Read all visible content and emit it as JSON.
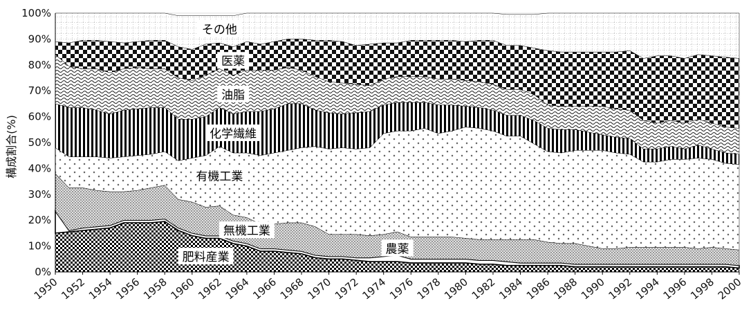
{
  "chart_data": {
    "type": "area",
    "ylabel": "構成割合(%)",
    "xlabel": "",
    "title": "",
    "xlim": [
      1950,
      2000
    ],
    "ylim": [
      0,
      100
    ],
    "y_ticks": [
      "0%",
      "10%",
      "20%",
      "30%",
      "40%",
      "50%",
      "60%",
      "70%",
      "80%",
      "90%",
      "100%"
    ],
    "x_ticks": [
      "1950",
      "1952",
      "1954",
      "1956",
      "1958",
      "1960",
      "1962",
      "1964",
      "1966",
      "1968",
      "1970",
      "1972",
      "1974",
      "1976",
      "1978",
      "1980",
      "1982",
      "1984",
      "1986",
      "1988",
      "1990",
      "1992",
      "1994",
      "1996",
      "1998",
      "2000"
    ],
    "stacked": true,
    "x": [
      1950,
      1951,
      1952,
      1953,
      1954,
      1955,
      1956,
      1957,
      1958,
      1959,
      1960,
      1961,
      1962,
      1963,
      1964,
      1965,
      1966,
      1967,
      1968,
      1969,
      1970,
      1971,
      1972,
      1973,
      1974,
      1975,
      1976,
      1977,
      1978,
      1979,
      1980,
      1981,
      1982,
      1983,
      1984,
      1985,
      1986,
      1987,
      1988,
      1989,
      1990,
      1991,
      1992,
      1993,
      1994,
      1995,
      1996,
      1997,
      1998,
      1999,
      2000
    ],
    "series": [
      {
        "name": "肥料産業",
        "values": [
          15,
          15.5,
          16,
          16.5,
          17,
          19,
          19,
          19,
          19.5,
          16,
          14,
          13,
          13,
          11,
          10,
          8,
          8,
          7.5,
          7,
          5.5,
          5,
          5,
          4.5,
          4,
          4,
          4,
          3.5,
          3.5,
          3.5,
          3.5,
          3.5,
          3,
          3,
          2.5,
          2.5,
          2.5,
          2.5,
          2.5,
          2,
          2,
          2,
          2,
          2,
          2,
          2,
          2,
          2,
          2,
          2,
          2,
          1.5
        ]
      },
      {
        "name": "農薬",
        "values": [
          8.5,
          0.5,
          1,
          1,
          1,
          1,
          1,
          1,
          1,
          1,
          1,
          1,
          1,
          1,
          1,
          1,
          1,
          1,
          1,
          1,
          1,
          1,
          1,
          1.5,
          2,
          2.5,
          1.5,
          1.5,
          1.5,
          1.5,
          1.5,
          1.5,
          1.5,
          1.5,
          1,
          1,
          1,
          1,
          1,
          1,
          1,
          1,
          1,
          1,
          1,
          1,
          1,
          1,
          1,
          1,
          1
        ]
      },
      {
        "name": "無機工業",
        "values": [
          14.5,
          16.5,
          15.5,
          14,
          13,
          11,
          11.5,
          12.5,
          13,
          11,
          12,
          11,
          11.5,
          10,
          10,
          9.5,
          9.5,
          10.5,
          11,
          11,
          8.5,
          8.5,
          9,
          8.5,
          8.5,
          9,
          8.5,
          8.5,
          8.5,
          8.5,
          8,
          8,
          8,
          8.5,
          9,
          9,
          8,
          7.5,
          8,
          7,
          6,
          6,
          6.5,
          6.5,
          6.5,
          6.5,
          6.5,
          6,
          6.5,
          6,
          6
        ]
      },
      {
        "name": "有機工業",
        "values": [
          10,
          12,
          12,
          13,
          13,
          13.5,
          13.5,
          13,
          13,
          15,
          17,
          20,
          23,
          24,
          25,
          26.5,
          27.5,
          28,
          29,
          31,
          33,
          33.5,
          33,
          34,
          39,
          39,
          41,
          42,
          40,
          41,
          43,
          43,
          42,
          40,
          40,
          37,
          35,
          35,
          36,
          37,
          38,
          37,
          36,
          33,
          33,
          34,
          34,
          35,
          34,
          33,
          33
        ]
      },
      {
        "name": "化学繊維",
        "values": [
          17,
          19,
          19,
          18,
          17,
          18,
          18,
          18,
          17,
          16,
          15,
          15,
          15,
          15,
          16,
          17,
          17,
          18,
          17,
          14,
          14,
          13,
          14,
          14,
          11,
          11,
          11,
          10,
          11,
          10,
          8,
          8,
          8,
          8,
          8,
          9,
          9,
          9,
          8,
          7,
          6,
          6,
          6,
          5,
          5,
          5,
          4,
          5,
          4,
          4,
          4
        ]
      },
      {
        "name": "油脂",
        "values": [
          19,
          16,
          15,
          16,
          16,
          16,
          16,
          15,
          15,
          16,
          15,
          16,
          15,
          15,
          16,
          16,
          15,
          14,
          13,
          13,
          12,
          12,
          11,
          10,
          10,
          10,
          10,
          10,
          10,
          10,
          10,
          10,
          10,
          10,
          10,
          10,
          9,
          9,
          9,
          10,
          11,
          11,
          11,
          11,
          10,
          10,
          10,
          10,
          10,
          10,
          10
        ]
      },
      {
        "name": "医薬",
        "values": [
          5,
          9,
          11,
          11,
          12,
          10,
          10,
          11,
          11,
          12,
          12,
          12,
          10,
          11,
          11,
          10,
          11,
          11,
          12,
          14,
          16,
          16,
          15,
          16,
          14,
          13,
          14,
          14,
          15,
          15,
          15,
          16,
          17,
          17,
          17,
          18,
          21,
          21,
          21,
          21,
          21,
          22,
          23,
          24,
          26,
          25,
          25,
          25,
          26,
          27,
          27
        ]
      },
      {
        "name": "その他",
        "values": [
          11,
          11.5,
          10.5,
          10.5,
          11,
          11.5,
          11,
          10.5,
          10.5,
          12,
          13,
          11,
          10.5,
          12,
          11,
          12,
          11,
          10,
          10,
          10.5,
          10.5,
          11,
          12.5,
          12,
          11.5,
          11.5,
          10.5,
          11.5,
          11,
          11,
          11,
          10.5,
          10.5,
          12,
          12,
          13,
          16.5,
          17,
          17,
          17,
          17,
          17,
          16.5,
          17.5,
          17.5,
          17.5,
          18.5,
          18,
          18.5,
          19,
          19.5
        ]
      }
    ]
  },
  "colors": {
    "ink": "#000000",
    "background": "#ffffff"
  }
}
